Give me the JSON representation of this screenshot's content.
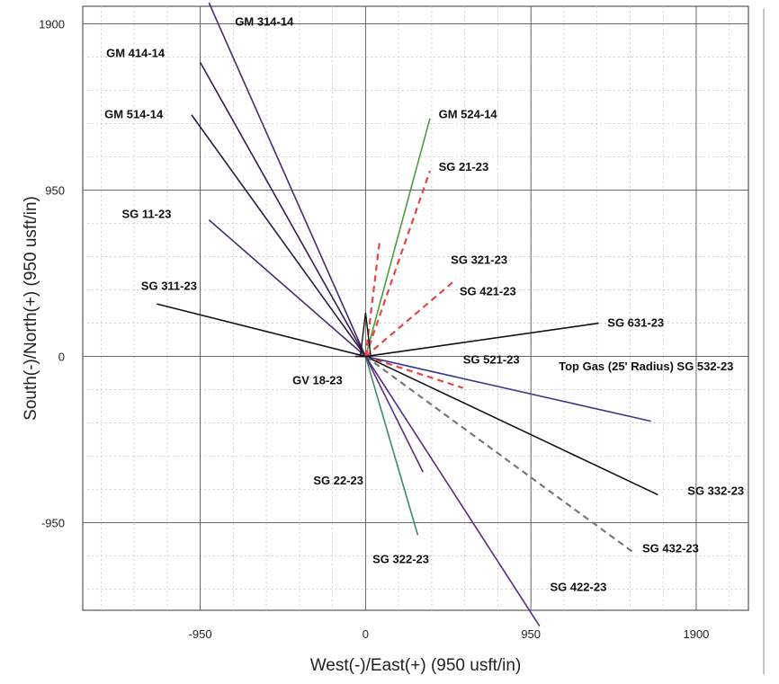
{
  "chart_data": {
    "type": "line",
    "xlabel": "West(-)/East(+) (950 usft/in)",
    "ylabel": "South(-)/North(+) (950 usft/in)",
    "xlim": [
      -1625,
      2200
    ],
    "ylim": [
      -1450,
      2000
    ],
    "x_ticks": [
      -950,
      0,
      950,
      1900
    ],
    "y_ticks": [
      -950,
      0,
      950,
      1900
    ],
    "grid": true,
    "series": [
      {
        "name": "GM 314-14",
        "color": "#4a2a6e",
        "points": [
          [
            0,
            0
          ],
          [
            -900,
            2020
          ]
        ],
        "label_at": [
          -750,
          1890
        ]
      },
      {
        "name": "GM 414-14",
        "color": "#3a1a55",
        "points": [
          [
            0,
            0
          ],
          [
            -950,
            1680
          ]
        ],
        "label_at": [
          -1490,
          1710
        ]
      },
      {
        "name": "GM 514-14",
        "color": "#2a1a40",
        "points": [
          [
            0,
            0
          ],
          [
            -1000,
            1380
          ]
        ],
        "label_at": [
          -1500,
          1360
        ]
      },
      {
        "name": "GM 524-14",
        "color": "#4d9c3a",
        "points": [
          [
            0,
            0
          ],
          [
            370,
            1360
          ]
        ],
        "label_at": [
          420,
          1360
        ]
      },
      {
        "name": "SG 21-23",
        "color": "#e64444",
        "dashed": true,
        "points": [
          [
            0,
            0
          ],
          [
            370,
            1060
          ]
        ],
        "label_at": [
          420,
          1060
        ]
      },
      {
        "name": "SG 11-23",
        "color": "#4a2a6e",
        "points": [
          [
            0,
            0
          ],
          [
            -900,
            780
          ]
        ],
        "label_at": [
          -1400,
          790
        ]
      },
      {
        "name": "SG 311-23",
        "color": "#111111",
        "points": [
          [
            0,
            0
          ],
          [
            -1200,
            300
          ]
        ],
        "label_at": [
          -1290,
          380
        ]
      },
      {
        "name": "SG 321-23",
        "color": "#e64444",
        "dashed": true,
        "points": [
          [
            0,
            0
          ],
          [
            80,
            650
          ]
        ],
        "label_at": [
          490,
          530
        ]
      },
      {
        "name": "SG 421-23",
        "color": "#e64444",
        "dashed": true,
        "points": [
          [
            0,
            0
          ],
          [
            520,
            440
          ]
        ],
        "label_at": [
          540,
          350
        ]
      },
      {
        "name": "SG 631-23",
        "color": "#111111",
        "points": [
          [
            0,
            0
          ],
          [
            1340,
            190
          ]
        ],
        "label_at": [
          1390,
          170
        ]
      },
      {
        "name": "SG 521-23",
        "color": "#e64444",
        "dashed": true,
        "points": [
          [
            0,
            0
          ],
          [
            560,
            -180
          ]
        ],
        "label_at": [
          560,
          -40
        ]
      },
      {
        "name": "Top Gas (25' Radius) SG 532-23",
        "color": "#3a3a8a",
        "points": [
          [
            0,
            0
          ],
          [
            1640,
            -370
          ]
        ],
        "label_at": [
          1110,
          -80
        ]
      },
      {
        "name": "GV 18-23",
        "color": "#111111",
        "points": [
          [
            -60,
            0
          ],
          [
            0,
            0
          ]
        ],
        "label_at": [
          -420,
          -160
        ]
      },
      {
        "name": "SG 332-23",
        "color": "#111111",
        "points": [
          [
            0,
            0
          ],
          [
            1680,
            -790
          ]
        ],
        "label_at": [
          1850,
          -790
        ]
      },
      {
        "name": "SG 22-23",
        "color": "#5a2a7e",
        "points": [
          [
            0,
            0
          ],
          [
            330,
            -660
          ]
        ],
        "label_at": [
          -300,
          -730
        ]
      },
      {
        "name": "SG 432-23",
        "color": "#777777",
        "dashed": true,
        "points": [
          [
            0,
            0
          ],
          [
            1540,
            -1120
          ]
        ],
        "label_at": [
          1590,
          -1120
        ]
      },
      {
        "name": "SG 322-23",
        "color": "#3a8a6e",
        "points": [
          [
            0,
            0
          ],
          [
            300,
            -1020
          ]
        ],
        "label_at": [
          40,
          -1180
        ]
      },
      {
        "name": "SG 422-23",
        "color": "#5a2a7e",
        "points": [
          [
            0,
            0
          ],
          [
            1000,
            -1540
          ]
        ],
        "label_at": [
          1060,
          -1340
        ]
      }
    ]
  }
}
